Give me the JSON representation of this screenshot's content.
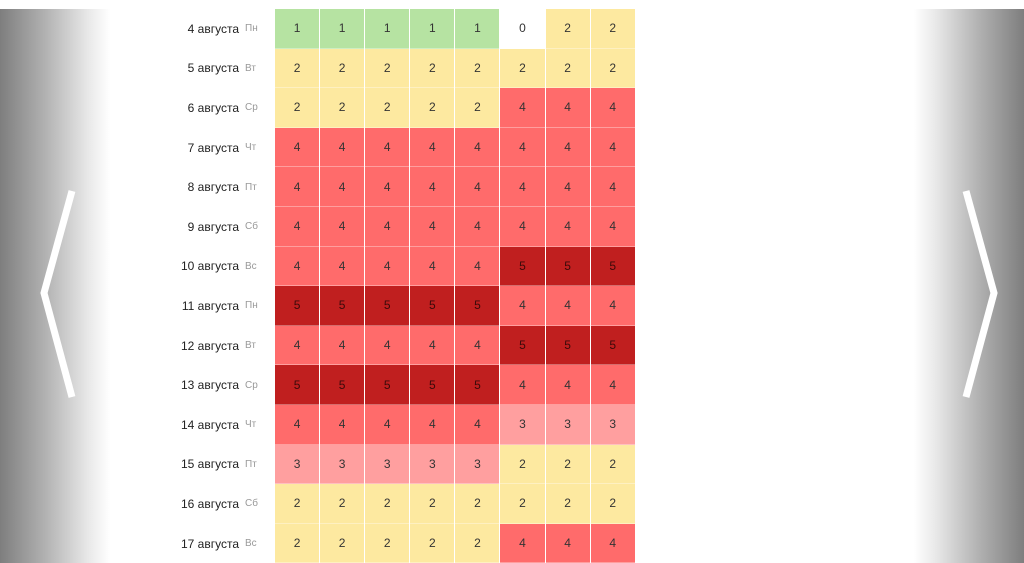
{
  "navigation": {
    "prev_icon": "chevron-left-icon",
    "next_icon": "chevron-right-icon"
  },
  "level_colors": {
    "0": "#ffffff",
    "1": "#b6e3a2",
    "2": "#fde9a0",
    "3": "#ff9f9f",
    "4": "#ff6b6b",
    "5": "#c01f1f"
  },
  "rows": [
    {
      "date": "4 августа",
      "weekday": "Пн",
      "values": [
        1,
        1,
        1,
        1,
        1,
        0,
        2,
        2
      ]
    },
    {
      "date": "5 августа",
      "weekday": "Вт",
      "values": [
        2,
        2,
        2,
        2,
        2,
        2,
        2,
        2
      ]
    },
    {
      "date": "6 августа",
      "weekday": "Ср",
      "values": [
        2,
        2,
        2,
        2,
        2,
        4,
        4,
        4
      ]
    },
    {
      "date": "7 августа",
      "weekday": "Чт",
      "values": [
        4,
        4,
        4,
        4,
        4,
        4,
        4,
        4
      ]
    },
    {
      "date": "8 августа",
      "weekday": "Пт",
      "values": [
        4,
        4,
        4,
        4,
        4,
        4,
        4,
        4
      ]
    },
    {
      "date": "9 августа",
      "weekday": "Сб",
      "values": [
        4,
        4,
        4,
        4,
        4,
        4,
        4,
        4
      ]
    },
    {
      "date": "10 августа",
      "weekday": "Вс",
      "values": [
        4,
        4,
        4,
        4,
        4,
        5,
        5,
        5
      ]
    },
    {
      "date": "11 августа",
      "weekday": "Пн",
      "values": [
        5,
        5,
        5,
        5,
        5,
        4,
        4,
        4
      ]
    },
    {
      "date": "12 августа",
      "weekday": "Вт",
      "values": [
        4,
        4,
        4,
        4,
        4,
        5,
        5,
        5
      ]
    },
    {
      "date": "13 августа",
      "weekday": "Ср",
      "values": [
        5,
        5,
        5,
        5,
        5,
        4,
        4,
        4
      ]
    },
    {
      "date": "14 августа",
      "weekday": "Чт",
      "values": [
        4,
        4,
        4,
        4,
        4,
        3,
        3,
        3
      ]
    },
    {
      "date": "15 августа",
      "weekday": "Пт",
      "values": [
        3,
        3,
        3,
        3,
        3,
        2,
        2,
        2
      ]
    },
    {
      "date": "16 августа",
      "weekday": "Сб",
      "values": [
        2,
        2,
        2,
        2,
        2,
        2,
        2,
        2
      ]
    },
    {
      "date": "17 августа",
      "weekday": "Вс",
      "values": [
        2,
        2,
        2,
        2,
        2,
        4,
        4,
        4
      ]
    }
  ]
}
